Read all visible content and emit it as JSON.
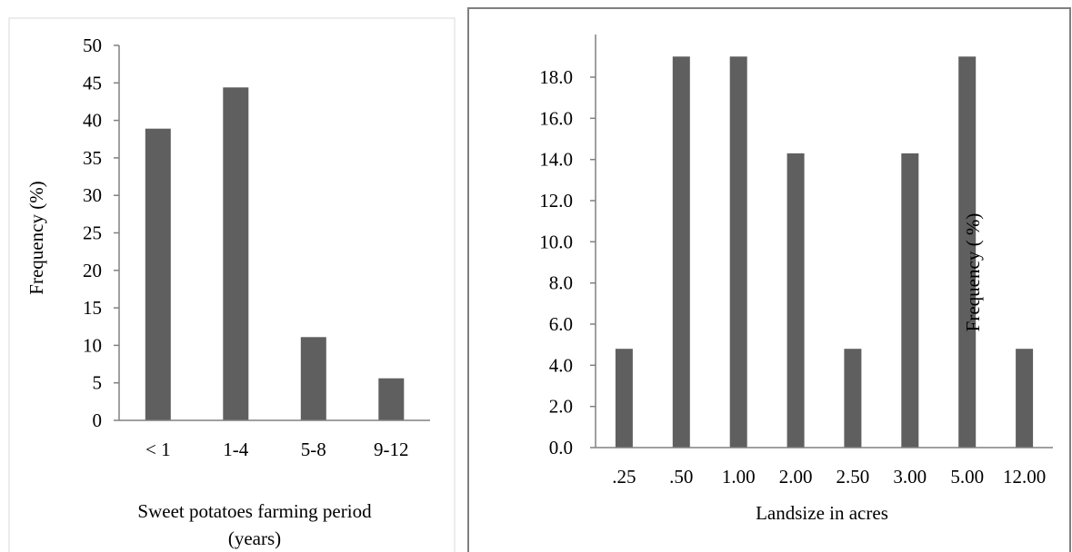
{
  "chart_data": [
    {
      "type": "bar",
      "title": "",
      "xlabel": "Sweet potatoes farming period (years)",
      "xlabel_lines": [
        "Sweet potatoes farming period",
        "(years)"
      ],
      "ylabel": "Frequency (%)",
      "categories": [
        "< 1",
        "1-4",
        "5-8",
        "9-12"
      ],
      "values": [
        38.9,
        44.4,
        11.1,
        5.6
      ],
      "ylim": [
        0,
        50
      ],
      "yticks": [
        "0",
        "5",
        "10",
        "15",
        "20",
        "25",
        "30",
        "35",
        "40",
        "45",
        "50"
      ],
      "grid": false,
      "bar_color": "#5f5f5f"
    },
    {
      "type": "bar",
      "title": "",
      "xlabel": "Landsize in acres",
      "ylabel": "Frequency ( %)",
      "categories": [
        ".25",
        ".50",
        "1.00",
        "2.00",
        "2.50",
        "3.00",
        "5.00",
        "12.00"
      ],
      "values": [
        4.8,
        19.0,
        19.0,
        14.3,
        4.8,
        14.3,
        19.0,
        4.8
      ],
      "ylim": [
        0,
        20
      ],
      "yticks": [
        "0.0",
        "2.0",
        "4.0",
        "6.0",
        "8.0",
        "10.0",
        "12.0",
        "14.0",
        "16.0",
        "18.0"
      ],
      "grid": false,
      "bar_color": "#5f5f5f"
    }
  ]
}
